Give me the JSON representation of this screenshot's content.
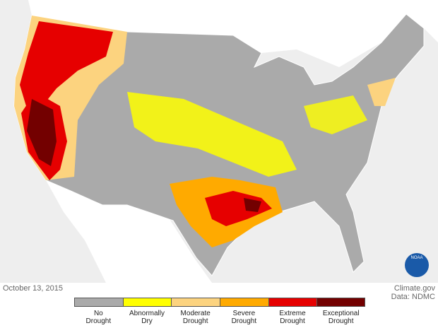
{
  "date": "October 13, 2015",
  "credit": {
    "site": "Climate.gov",
    "source": "Data: NDMC"
  },
  "logo": "NOAA",
  "legend": [
    {
      "lines": [
        "No",
        "Drought"
      ],
      "color": "#aaaaaa"
    },
    {
      "lines": [
        "Abnormally",
        "Dry"
      ],
      "color": "#ffff00"
    },
    {
      "lines": [
        "Moderate",
        "Drought"
      ],
      "color": "#fcd37f"
    },
    {
      "lines": [
        "Severe",
        "Drought"
      ],
      "color": "#ffaa00"
    },
    {
      "lines": [
        "Extreme",
        "Drought"
      ],
      "color": "#e60000"
    },
    {
      "lines": [
        "Exceptional",
        "Drought"
      ],
      "color": "#730000"
    }
  ]
}
